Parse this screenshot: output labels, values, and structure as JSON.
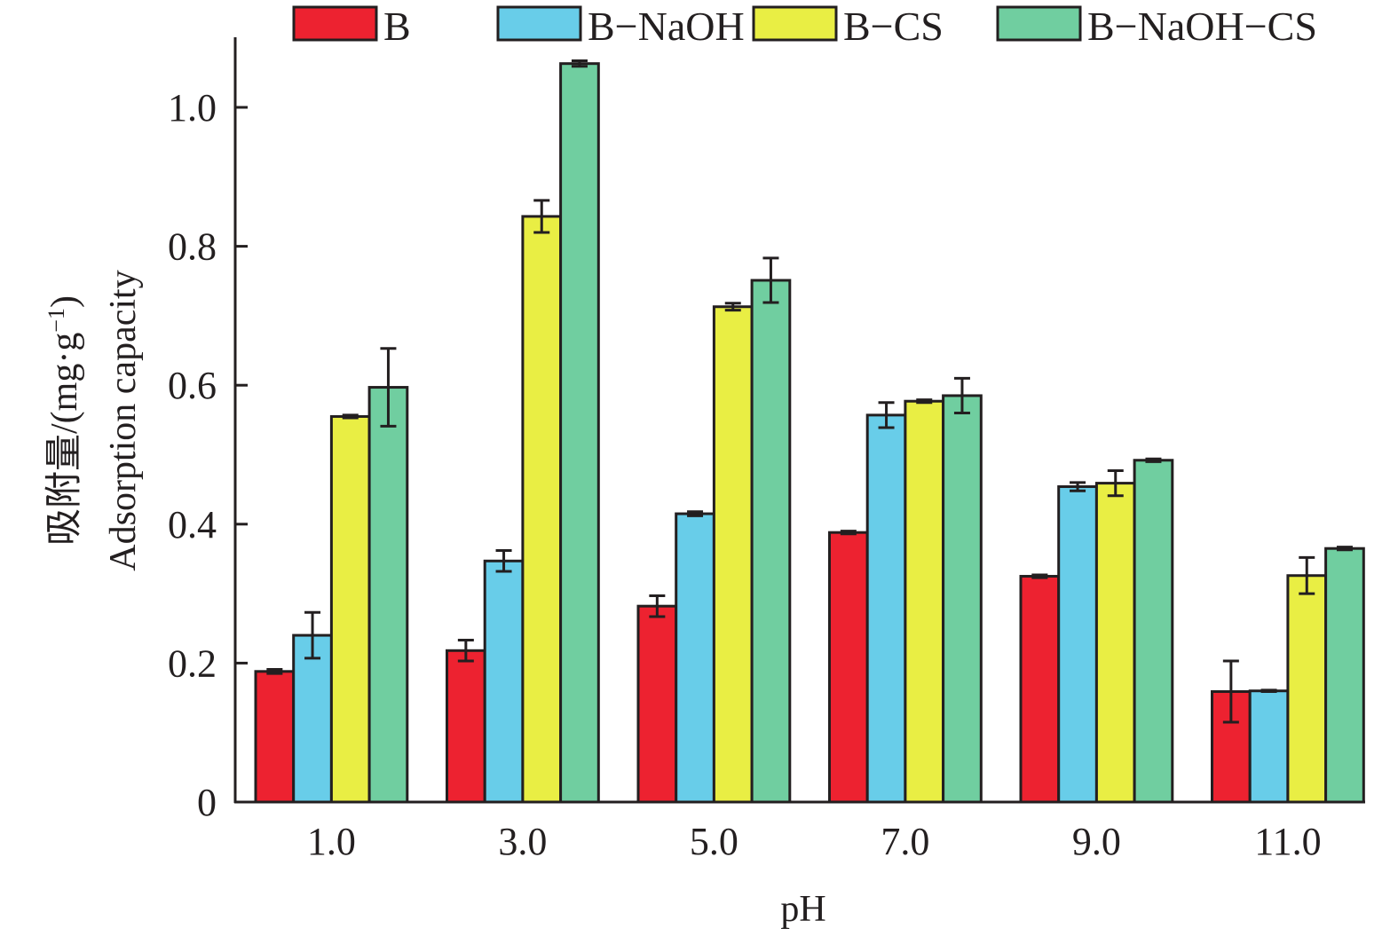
{
  "chart_data": {
    "type": "bar",
    "title": "",
    "xlabel": "pH",
    "ylabel_line1": "吸附量/(mg·g",
    "ylabel_sup": "−1",
    "ylabel_close": ")",
    "ylabel_line2": "Adsorption capacity",
    "ylim": [
      0,
      1.1
    ],
    "yticks": [
      0,
      0.2,
      0.4,
      0.6,
      0.8,
      1.0
    ],
    "ytick_labels": [
      "0",
      "0.2",
      "0.4",
      "0.6",
      "0.8",
      "1.0"
    ],
    "categories": [
      "1.0",
      "3.0",
      "5.0",
      "7.0",
      "9.0",
      "11.0"
    ],
    "legend_position": "top",
    "grid": false,
    "series": [
      {
        "name": "B",
        "color": "#ed2230",
        "values": [
          0.188,
          0.218,
          0.282,
          0.388,
          0.325,
          0.159
        ],
        "errors": [
          0.003,
          0.015,
          0.015,
          0.002,
          0.002,
          0.044
        ]
      },
      {
        "name": "B−NaOH",
        "color": "#68cde9",
        "values": [
          0.24,
          0.347,
          0.415,
          0.557,
          0.454,
          0.16
        ],
        "errors": [
          0.033,
          0.015,
          0.003,
          0.018,
          0.006,
          0.001
        ]
      },
      {
        "name": "B−CS",
        "color": "#e9ee44",
        "values": [
          0.555,
          0.843,
          0.713,
          0.577,
          0.459,
          0.326
        ],
        "errors": [
          0.002,
          0.023,
          0.005,
          0.002,
          0.018,
          0.026
        ]
      },
      {
        "name": "B−NaOH−CS",
        "color": "#70cea0",
        "values": [
          0.597,
          1.063,
          0.751,
          0.585,
          0.492,
          0.365
        ],
        "errors": [
          0.056,
          0.004,
          0.032,
          0.025,
          0.002,
          0.002
        ]
      }
    ]
  }
}
